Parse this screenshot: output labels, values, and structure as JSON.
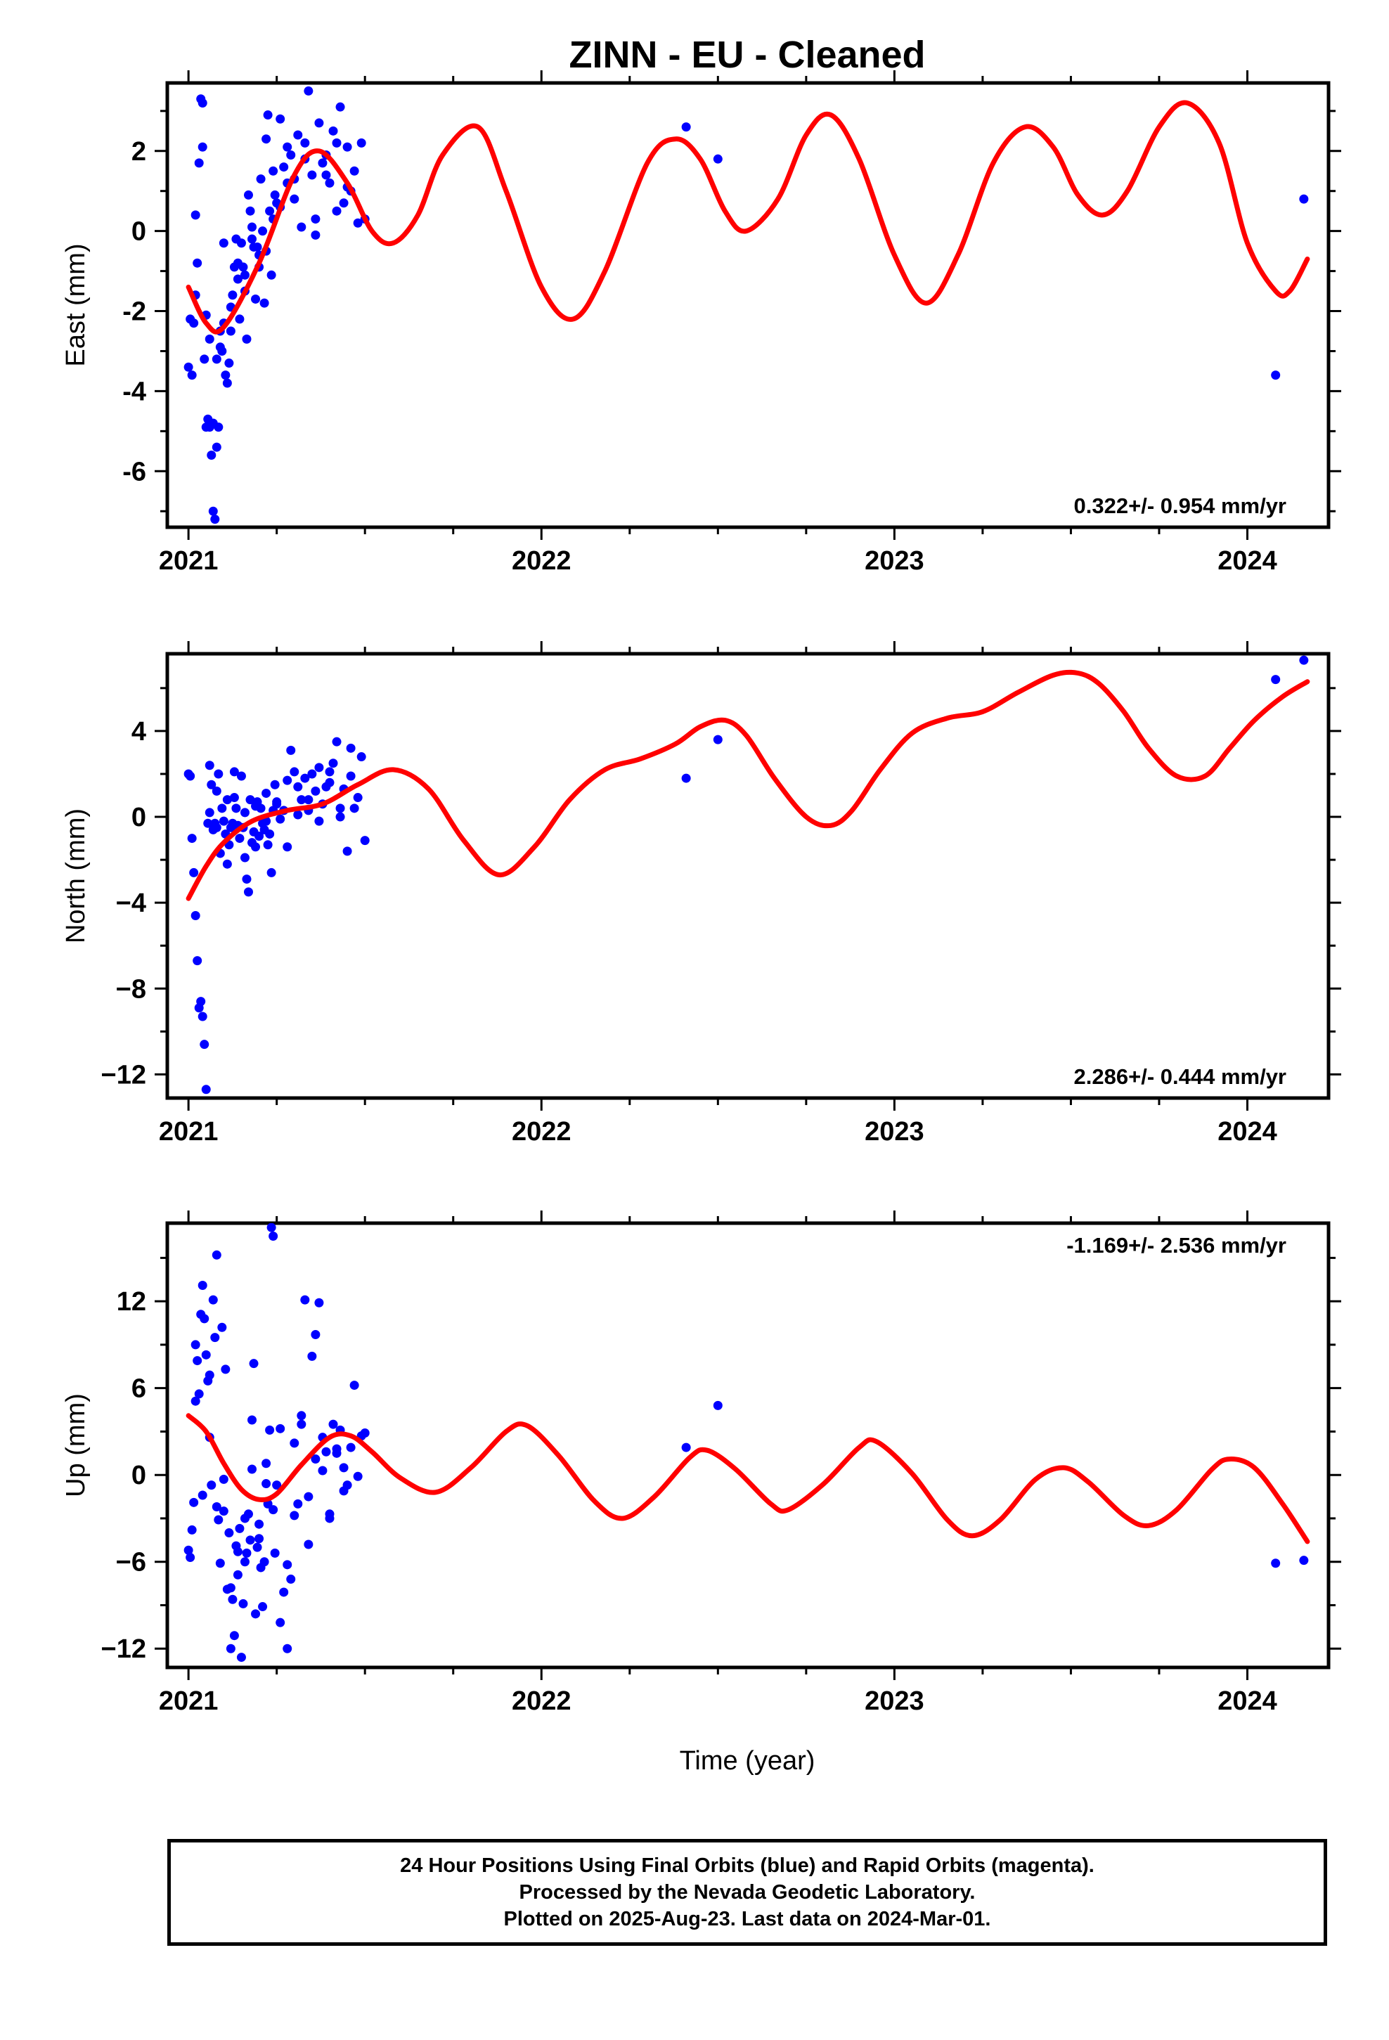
{
  "title": "ZINN  - EU - Cleaned",
  "colors": {
    "fit": "#ff0000",
    "final_orbits": "#0000ff",
    "rapid_orbits": "#ff00ff",
    "frame": "#000000"
  },
  "caption": {
    "lines": [
      "24 Hour Positions Using Final Orbits (blue) and Rapid Orbits (magenta).",
      "Processed by the Nevada Geodetic Laboratory.",
      "Plotted on 2025-Aug-23. Last data on 2024-Mar-01."
    ]
  },
  "chart_data": [
    {
      "type": "scatter",
      "ylabel": "East (mm)",
      "xlabel": "",
      "xlim": [
        2020.94,
        2024.23
      ],
      "ylim": [
        -7.4,
        3.7
      ],
      "xticks": [
        2021,
        2022,
        2023,
        2024
      ],
      "xtick_labels": [
        "2021",
        "2022",
        "2023",
        "2024"
      ],
      "yticks": [
        -6,
        -4,
        -2,
        0,
        2
      ],
      "ytick_labels": [
        "-6",
        "-4",
        "-2",
        "0",
        "2"
      ],
      "rate": "0.322+/- 0.954 mm/yr",
      "rate_position": "bottom-right",
      "fit": {
        "x": [
          2021.0,
          2021.05,
          2021.1,
          2021.2,
          2021.3,
          2021.37,
          2021.45,
          2021.52,
          2021.58,
          2021.65,
          2021.72,
          2021.82,
          2021.9,
          2022.0,
          2022.09,
          2022.18,
          2022.3,
          2022.38,
          2022.45,
          2022.52,
          2022.58,
          2022.67,
          2022.75,
          2022.82,
          2022.9,
          2023.0,
          2023.09,
          2023.18,
          2023.28,
          2023.37,
          2023.45,
          2023.52,
          2023.59,
          2023.66,
          2023.75,
          2023.83,
          2023.92,
          2024.0,
          2024.08,
          2024.12,
          2024.17
        ],
        "y": [
          -1.4,
          -2.3,
          -2.4,
          -0.8,
          1.4,
          2.0,
          1.2,
          0.0,
          -0.3,
          0.4,
          1.9,
          2.6,
          1.0,
          -1.4,
          -2.2,
          -1.0,
          1.7,
          2.3,
          1.8,
          0.5,
          0.0,
          0.8,
          2.4,
          2.9,
          1.8,
          -0.6,
          -1.8,
          -0.6,
          1.7,
          2.6,
          2.1,
          0.9,
          0.4,
          1.0,
          2.6,
          3.2,
          2.2,
          -0.3,
          -1.5,
          -1.5,
          -0.7
        ]
      },
      "points": {
        "x": [
          2021.0,
          2021.005,
          2021.01,
          2021.015,
          2021.02,
          2021.025,
          2021.03,
          2021.035,
          2021.04,
          2021.045,
          2021.05,
          2021.055,
          2021.06,
          2021.065,
          2021.07,
          2021.075,
          2021.08,
          2021.085,
          2021.09,
          2021.095,
          2021.1,
          2021.105,
          2021.11,
          2021.115,
          2021.12,
          2021.125,
          2021.13,
          2021.135,
          2021.14,
          2021.145,
          2021.15,
          2021.155,
          2021.16,
          2021.165,
          2021.17,
          2021.175,
          2021.18,
          2021.185,
          2021.19,
          2021.195,
          2021.2,
          2021.205,
          2021.21,
          2021.215,
          2021.22,
          2021.225,
          2021.23,
          2021.235,
          2021.24,
          2021.245,
          2021.25,
          2021.26,
          2021.27,
          2021.28,
          2021.29,
          2021.3,
          2021.31,
          2021.32,
          2021.33,
          2021.34,
          2021.35,
          2021.36,
          2021.37,
          2021.38,
          2021.39,
          2021.4,
          2021.41,
          2021.42,
          2021.43,
          2021.44,
          2021.45,
          2021.46,
          2021.47,
          2021.48,
          2021.49,
          2021.5,
          2021.02,
          2021.04,
          2021.05,
          2021.06,
          2021.07,
          2021.08,
          2021.09,
          2021.1,
          2021.12,
          2021.14,
          2021.16,
          2021.18,
          2021.2,
          2021.22,
          2021.24,
          2021.26,
          2021.28,
          2021.3,
          2021.33,
          2021.36,
          2021.39,
          2021.42,
          2021.45,
          2022.41,
          2022.5,
          2024.08,
          2024.16
        ],
        "y": [
          -3.4,
          -2.2,
          -3.6,
          -2.3,
          0.4,
          -0.8,
          1.7,
          3.3,
          3.2,
          -3.2,
          -2.1,
          -4.7,
          -4.9,
          -5.6,
          -7.0,
          -7.2,
          -5.4,
          -4.9,
          -2.5,
          -3.0,
          -0.3,
          -3.6,
          -3.8,
          -3.3,
          -1.9,
          -1.6,
          -0.9,
          -0.2,
          -1.2,
          -2.2,
          -0.3,
          -0.9,
          -1.1,
          -2.7,
          0.9,
          0.5,
          0.1,
          -0.4,
          -1.7,
          -0.4,
          -0.6,
          1.3,
          0.0,
          -1.8,
          2.3,
          2.9,
          0.5,
          -1.1,
          1.5,
          0.9,
          0.7,
          2.8,
          1.6,
          2.1,
          1.9,
          1.3,
          2.4,
          0.1,
          1.8,
          3.5,
          1.4,
          0.3,
          2.7,
          1.7,
          1.4,
          1.2,
          2.5,
          2.2,
          3.1,
          0.7,
          2.1,
          1.0,
          1.5,
          0.2,
          2.2,
          0.3,
          -1.6,
          2.1,
          -4.9,
          -2.7,
          -4.8,
          -3.2,
          -2.9,
          -2.3,
          -2.5,
          -0.8,
          -1.5,
          -0.2,
          -0.9,
          -0.5,
          0.3,
          0.6,
          1.2,
          0.8,
          2.2,
          -0.1,
          1.9,
          0.5,
          1.1,
          2.6,
          1.8,
          -3.6,
          0.8
        ]
      }
    },
    {
      "type": "scatter",
      "ylabel": "North (mm)",
      "xlabel": "",
      "xlim": [
        2020.94,
        2024.23
      ],
      "ylim": [
        -13.1,
        7.6
      ],
      "xticks": [
        2021,
        2022,
        2023,
        2024
      ],
      "xtick_labels": [
        "2021",
        "2022",
        "2023",
        "2024"
      ],
      "yticks": [
        -12,
        -8,
        -4,
        0,
        4
      ],
      "ytick_labels": [
        "−12",
        "−8",
        "−4",
        "0",
        "4"
      ],
      "rate": "2.286+/- 0.444 mm/yr",
      "rate_position": "bottom-right",
      "fit": {
        "x": [
          2021.0,
          2021.05,
          2021.1,
          2021.18,
          2021.28,
          2021.38,
          2021.48,
          2021.58,
          2021.68,
          2021.78,
          2021.88,
          2021.98,
          2022.08,
          2022.18,
          2022.28,
          2022.38,
          2022.45,
          2022.52,
          2022.58,
          2022.66,
          2022.75,
          2022.82,
          2022.88,
          2022.96,
          2023.05,
          2023.15,
          2023.25,
          2023.35,
          2023.45,
          2023.52,
          2023.58,
          2023.65,
          2023.72,
          2023.8,
          2023.88,
          2023.95,
          2024.02,
          2024.1,
          2024.17
        ],
        "y": [
          -3.8,
          -2.3,
          -1.2,
          -0.2,
          0.3,
          0.6,
          1.5,
          2.2,
          1.3,
          -1.1,
          -2.7,
          -1.4,
          0.8,
          2.2,
          2.7,
          3.4,
          4.2,
          4.5,
          3.8,
          1.8,
          0.0,
          -0.4,
          0.3,
          2.2,
          3.9,
          4.6,
          4.9,
          5.8,
          6.6,
          6.7,
          6.2,
          4.9,
          3.2,
          1.9,
          1.9,
          3.2,
          4.5,
          5.6,
          6.3
        ]
      },
      "points": {
        "x": [
          2021.0,
          2021.005,
          2021.01,
          2021.015,
          2021.02,
          2021.025,
          2021.03,
          2021.035,
          2021.04,
          2021.045,
          2021.05,
          2021.055,
          2021.06,
          2021.065,
          2021.07,
          2021.075,
          2021.08,
          2021.085,
          2021.09,
          2021.095,
          2021.1,
          2021.105,
          2021.11,
          2021.115,
          2021.12,
          2021.125,
          2021.13,
          2021.135,
          2021.14,
          2021.145,
          2021.15,
          2021.155,
          2021.16,
          2021.165,
          2021.17,
          2021.175,
          2021.18,
          2021.185,
          2021.19,
          2021.195,
          2021.2,
          2021.205,
          2021.21,
          2021.215,
          2021.22,
          2021.225,
          2021.23,
          2021.235,
          2021.24,
          2021.245,
          2021.25,
          2021.26,
          2021.27,
          2021.28,
          2021.29,
          2021.3,
          2021.31,
          2021.32,
          2021.33,
          2021.34,
          2021.35,
          2021.36,
          2021.37,
          2021.38,
          2021.39,
          2021.4,
          2021.41,
          2021.42,
          2021.43,
          2021.44,
          2021.45,
          2021.46,
          2021.47,
          2021.48,
          2021.49,
          2021.5,
          2021.06,
          2021.08,
          2021.11,
          2021.13,
          2021.16,
          2021.19,
          2021.22,
          2021.25,
          2021.28,
          2021.31,
          2021.34,
          2021.37,
          2021.4,
          2021.43,
          2021.46,
          2022.41,
          2022.5,
          2024.08,
          2024.16
        ],
        "y": [
          2.0,
          1.9,
          -1.0,
          -2.6,
          -4.6,
          -6.7,
          -8.9,
          -8.6,
          -9.3,
          -10.6,
          -12.7,
          -0.3,
          2.4,
          1.5,
          -0.6,
          -0.3,
          1.2,
          2.0,
          -1.7,
          0.4,
          -0.2,
          -0.8,
          0.8,
          -1.3,
          -0.5,
          -0.3,
          2.1,
          0.4,
          -0.4,
          -1.0,
          1.9,
          -0.5,
          0.2,
          -2.9,
          -3.5,
          0.8,
          -1.2,
          -0.7,
          -1.4,
          0.7,
          -0.9,
          0.4,
          -0.3,
          -0.6,
          1.1,
          -1.3,
          -0.8,
          -2.6,
          0.3,
          1.5,
          0.7,
          -0.1,
          0.3,
          -1.4,
          3.1,
          2.1,
          1.4,
          0.8,
          1.8,
          0.3,
          2.0,
          1.2,
          -0.2,
          0.6,
          1.4,
          2.1,
          2.5,
          3.5,
          0.0,
          1.3,
          -1.6,
          3.2,
          0.4,
          0.9,
          2.8,
          -1.1,
          0.2,
          -0.5,
          -2.2,
          0.9,
          -1.9,
          0.5,
          -0.2,
          0.6,
          1.7,
          0.1,
          0.8,
          2.3,
          1.6,
          0.4,
          1.9,
          1.8,
          3.6,
          6.4,
          7.3
        ]
      }
    },
    {
      "type": "scatter",
      "ylabel": "Up (mm)",
      "xlabel": "Time (year)",
      "xlim": [
        2020.94,
        2024.23
      ],
      "ylim": [
        -13.3,
        17.4
      ],
      "xticks": [
        2021,
        2022,
        2023,
        2024
      ],
      "xtick_labels": [
        "2021",
        "2022",
        "2023",
        "2024"
      ],
      "yticks": [
        -12,
        -6,
        0,
        6,
        12
      ],
      "ytick_labels": [
        "−12",
        "−6",
        "0",
        "6",
        "12"
      ],
      "rate": "-1.169+/- 2.536 mm/yr",
      "rate_position": "top-right",
      "fit": {
        "x": [
          2021.0,
          2021.05,
          2021.1,
          2021.15,
          2021.2,
          2021.25,
          2021.32,
          2021.4,
          2021.46,
          2021.52,
          2021.6,
          2021.7,
          2021.8,
          2021.9,
          2021.96,
          2022.05,
          2022.15,
          2022.23,
          2022.32,
          2022.42,
          2022.47,
          2022.55,
          2022.65,
          2022.7,
          2022.8,
          2022.9,
          2022.95,
          2023.05,
          2023.15,
          2023.22,
          2023.3,
          2023.4,
          2023.48,
          2023.55,
          2023.65,
          2023.72,
          2023.8,
          2023.9,
          2023.95,
          2024.02,
          2024.1,
          2024.17
        ],
        "y": [
          4.1,
          3.0,
          0.8,
          -1.0,
          -1.7,
          -1.3,
          0.7,
          2.6,
          2.7,
          1.6,
          -0.2,
          -1.2,
          0.5,
          3.0,
          3.4,
          1.3,
          -1.8,
          -3.0,
          -1.5,
          1.2,
          1.7,
          0.4,
          -2.0,
          -2.4,
          -0.6,
          1.9,
          2.3,
          0.1,
          -3.1,
          -4.2,
          -3.1,
          -0.3,
          0.5,
          -0.5,
          -2.8,
          -3.5,
          -2.4,
          0.4,
          1.1,
          0.5,
          -2.0,
          -4.6
        ]
      },
      "points": {
        "x": [
          2021.0,
          2021.005,
          2021.01,
          2021.015,
          2021.02,
          2021.025,
          2021.03,
          2021.035,
          2021.04,
          2021.045,
          2021.05,
          2021.055,
          2021.06,
          2021.065,
          2021.07,
          2021.075,
          2021.08,
          2021.085,
          2021.09,
          2021.095,
          2021.1,
          2021.105,
          2021.11,
          2021.115,
          2021.12,
          2021.125,
          2021.13,
          2021.135,
          2021.14,
          2021.145,
          2021.15,
          2021.155,
          2021.16,
          2021.165,
          2021.17,
          2021.175,
          2021.18,
          2021.185,
          2021.19,
          2021.195,
          2021.2,
          2021.205,
          2021.21,
          2021.215,
          2021.22,
          2021.225,
          2021.23,
          2021.235,
          2021.24,
          2021.245,
          2021.25,
          2021.26,
          2021.27,
          2021.28,
          2021.29,
          2021.3,
          2021.31,
          2021.32,
          2021.33,
          2021.34,
          2021.35,
          2021.36,
          2021.37,
          2021.38,
          2021.39,
          2021.4,
          2021.41,
          2021.42,
          2021.43,
          2021.44,
          2021.45,
          2021.46,
          2021.47,
          2021.48,
          2021.49,
          2021.5,
          2021.02,
          2021.04,
          2021.06,
          2021.08,
          2021.1,
          2021.12,
          2021.14,
          2021.16,
          2021.18,
          2021.2,
          2021.22,
          2021.24,
          2021.26,
          2021.28,
          2021.3,
          2021.32,
          2021.34,
          2021.36,
          2021.38,
          2021.4,
          2021.42,
          2021.44,
          2022.41,
          2022.5,
          2024.08,
          2024.16
        ],
        "y": [
          -5.2,
          -5.7,
          -3.8,
          -1.9,
          5.1,
          7.9,
          5.6,
          11.1,
          13.1,
          10.8,
          8.3,
          6.5,
          2.6,
          -0.7,
          12.1,
          9.5,
          15.2,
          -3.1,
          -6.1,
          10.2,
          -2.5,
          7.3,
          -7.9,
          -4.0,
          -12.0,
          -8.6,
          -11.1,
          -4.9,
          -6.9,
          -3.7,
          -12.6,
          -8.9,
          -6.0,
          -5.4,
          -2.7,
          -4.5,
          3.8,
          7.7,
          -9.6,
          -5.0,
          -4.4,
          -6.4,
          -9.1,
          -6.0,
          -0.6,
          -2.0,
          3.1,
          17.1,
          16.5,
          -5.4,
          -0.7,
          -10.2,
          -8.1,
          -12.0,
          -7.2,
          -2.8,
          -2.0,
          3.5,
          12.1,
          -4.8,
          8.2,
          9.7,
          11.9,
          2.6,
          1.6,
          -2.7,
          3.5,
          1.5,
          3.1,
          -1.1,
          -0.7,
          1.9,
          6.2,
          -0.1,
          2.7,
          2.9,
          9.0,
          -1.4,
          6.9,
          -2.2,
          -0.3,
          -7.8,
          -5.3,
          -3.0,
          0.4,
          -3.4,
          0.8,
          -2.4,
          3.2,
          -6.2,
          2.2,
          4.1,
          -1.5,
          1.1,
          0.3,
          -3.0,
          1.8,
          0.5,
          1.9,
          4.8,
          -6.1,
          -5.9
        ]
      }
    }
  ]
}
